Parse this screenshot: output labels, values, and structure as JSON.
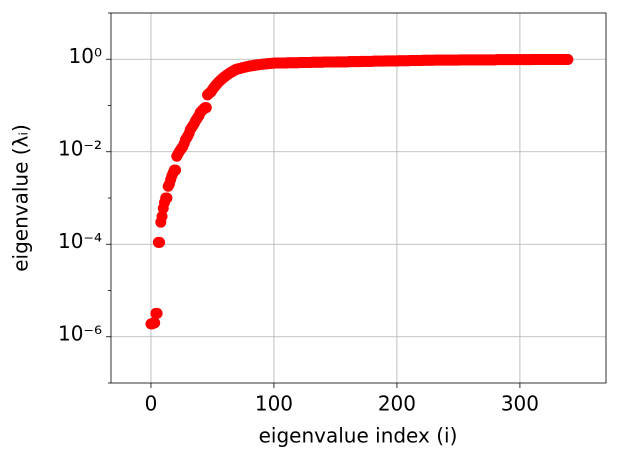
{
  "chart_data": {
    "type": "scatter",
    "xlabel": "eigenvalue index (i)",
    "ylabel": "eigenvalue (λᵢ)",
    "color": "#ff0000",
    "log_y": true,
    "grid": true,
    "xlim": [
      -32.5,
      370
    ],
    "xticks": [
      0,
      100,
      200,
      300
    ],
    "ylim": [
      1e-07,
      10
    ],
    "yticks": [
      {
        "value": 1e-06,
        "label": "10⁻⁶"
      },
      {
        "value": 0.0001,
        "label": "10⁻⁴"
      },
      {
        "value": 0.01,
        "label": "10⁻²"
      },
      {
        "value": 1,
        "label": "10⁰"
      }
    ],
    "yticks_minor": [
      1e-07,
      1e-05,
      0.001,
      0.1,
      10
    ],
    "x": [
      0,
      1,
      2,
      3,
      4,
      5,
      6,
      7,
      8,
      9,
      10,
      11,
      12,
      13,
      14,
      15,
      16,
      17,
      18,
      19,
      20,
      21,
      22,
      23,
      24,
      25,
      26,
      27,
      28,
      29,
      30,
      31,
      32,
      33,
      34,
      35,
      36,
      37,
      38,
      39,
      40,
      41,
      42,
      43,
      44,
      45,
      46,
      47,
      48,
      49,
      50,
      51,
      52,
      53,
      54,
      55,
      56,
      57,
      58,
      59,
      60,
      61,
      62,
      63,
      64,
      65,
      66,
      67,
      68,
      69,
      70,
      71,
      72,
      73,
      74,
      75,
      76,
      77,
      78,
      79,
      80,
      81,
      82,
      83,
      84,
      85,
      86,
      87,
      88,
      89,
      90,
      91,
      92,
      93,
      94,
      95,
      96,
      97,
      98,
      99,
      100,
      101,
      102,
      103,
      104,
      105,
      106,
      107,
      108,
      109,
      110,
      111,
      112,
      113,
      114,
      115,
      116,
      117,
      118,
      119,
      120,
      121,
      122,
      123,
      124,
      125,
      126,
      127,
      128,
      129,
      130,
      131,
      132,
      133,
      134,
      135,
      136,
      137,
      138,
      139,
      140,
      141,
      142,
      143,
      144,
      145,
      146,
      147,
      148,
      149,
      150,
      151,
      152,
      153,
      154,
      155,
      156,
      157,
      158,
      159,
      160,
      161,
      162,
      163,
      164,
      165,
      166,
      167,
      168,
      169,
      170,
      171,
      172,
      173,
      174,
      175,
      176,
      177,
      178,
      179,
      180,
      181,
      182,
      183,
      184,
      185,
      186,
      187,
      188,
      189,
      190,
      191,
      192,
      193,
      194,
      195,
      196,
      197,
      198,
      199,
      200,
      201,
      202,
      203,
      204,
      205,
      206,
      207,
      208,
      209,
      210,
      211,
      212,
      213,
      214,
      215,
      216,
      217,
      218,
      219,
      220,
      221,
      222,
      223,
      224,
      225,
      226,
      227,
      228,
      229,
      230,
      231,
      232,
      233,
      234,
      235,
      236,
      237,
      238,
      239,
      240,
      241,
      242,
      243,
      244,
      245,
      246,
      247,
      248,
      249,
      250,
      251,
      252,
      253,
      254,
      255,
      256,
      257,
      258,
      259,
      260,
      261,
      262,
      263,
      264,
      265,
      266,
      267,
      268,
      269,
      270,
      271,
      272,
      273,
      274,
      275,
      276,
      277,
      278,
      279,
      280,
      281,
      282,
      283,
      284,
      285,
      286,
      287,
      288,
      289,
      290,
      291,
      292,
      293,
      294,
      295,
      296,
      297,
      298,
      299,
      300,
      301,
      302,
      303,
      304,
      305,
      306,
      307,
      308,
      309,
      310,
      311,
      312,
      313,
      314,
      315,
      316,
      317,
      318,
      319,
      320,
      321,
      322,
      323,
      324,
      325,
      326,
      327,
      328,
      329,
      330,
      331,
      332,
      333,
      334,
      335,
      336,
      337,
      338,
      339
    ],
    "values": [
      1.9e-06,
      1.9e-06,
      2e-06,
      2e-06,
      3.2e-06,
      3.2e-06,
      0.00011,
      0.00011,
      0.0003,
      0.0004,
      0.0006,
      0.0008,
      0.001,
      0.001,
      0.0018,
      0.002,
      0.0025,
      0.003,
      0.0035,
      0.004,
      0.004,
      0.008,
      0.009,
      0.01,
      0.011,
      0.012,
      0.013,
      0.015,
      0.018,
      0.02,
      0.022,
      0.025,
      0.03,
      0.033,
      0.036,
      0.04,
      0.045,
      0.05,
      0.055,
      0.06,
      0.07,
      0.075,
      0.08,
      0.085,
      0.09,
      0.09,
      0.17,
      0.18,
      0.19,
      0.2,
      0.22,
      0.24,
      0.26,
      0.28,
      0.3,
      0.32,
      0.34,
      0.36,
      0.38,
      0.4,
      0.42,
      0.44,
      0.46,
      0.48,
      0.5,
      0.52,
      0.54,
      0.56,
      0.58,
      0.6,
      0.61,
      0.62,
      0.63,
      0.64,
      0.65,
      0.66,
      0.67,
      0.68,
      0.69,
      0.7,
      0.71,
      0.72,
      0.72,
      0.73,
      0.74,
      0.74,
      0.75,
      0.76,
      0.76,
      0.77,
      0.78,
      0.78,
      0.79,
      0.79,
      0.8,
      0.8,
      0.81,
      0.81,
      0.82,
      0.82,
      0.82,
      0.83,
      0.83,
      0.83,
      0.83,
      0.83,
      0.83,
      0.83,
      0.83,
      0.83,
      0.83,
      0.84,
      0.84,
      0.84,
      0.84,
      0.84,
      0.84,
      0.84,
      0.84,
      0.84,
      0.84,
      0.85,
      0.85,
      0.85,
      0.85,
      0.85,
      0.85,
      0.85,
      0.85,
      0.85,
      0.85,
      0.86,
      0.86,
      0.86,
      0.86,
      0.86,
      0.86,
      0.86,
      0.86,
      0.86,
      0.86,
      0.87,
      0.87,
      0.87,
      0.87,
      0.87,
      0.87,
      0.87,
      0.87,
      0.87,
      0.87,
      0.88,
      0.88,
      0.88,
      0.88,
      0.88,
      0.88,
      0.88,
      0.88,
      0.88,
      0.88,
      0.89,
      0.89,
      0.89,
      0.89,
      0.89,
      0.89,
      0.89,
      0.89,
      0.89,
      0.89,
      0.9,
      0.9,
      0.9,
      0.9,
      0.9,
      0.9,
      0.9,
      0.9,
      0.9,
      0.9,
      0.91,
      0.91,
      0.91,
      0.91,
      0.91,
      0.91,
      0.91,
      0.91,
      0.91,
      0.91,
      0.92,
      0.92,
      0.92,
      0.92,
      0.92,
      0.92,
      0.92,
      0.92,
      0.92,
      0.92,
      0.93,
      0.93,
      0.93,
      0.93,
      0.93,
      0.93,
      0.93,
      0.93,
      0.93,
      0.93,
      0.94,
      0.94,
      0.94,
      0.94,
      0.94,
      0.94,
      0.94,
      0.94,
      0.94,
      0.94,
      0.95,
      0.95,
      0.95,
      0.95,
      0.95,
      0.95,
      0.95,
      0.95,
      0.95,
      0.95,
      0.96,
      0.96,
      0.96,
      0.96,
      0.96,
      0.96,
      0.96,
      0.96,
      0.96,
      0.96,
      0.96,
      0.96,
      0.96,
      0.96,
      0.96,
      0.96,
      0.96,
      0.96,
      0.96,
      0.96,
      0.97,
      0.97,
      0.97,
      0.97,
      0.97,
      0.97,
      0.97,
      0.97,
      0.97,
      0.97,
      0.97,
      0.97,
      0.97,
      0.97,
      0.97,
      0.97,
      0.97,
      0.97,
      0.97,
      0.97,
      0.97,
      0.97,
      0.97,
      0.97,
      0.97,
      0.97,
      0.97,
      0.97,
      0.97,
      0.97,
      0.98,
      0.98,
      0.98,
      0.98,
      0.98,
      0.98,
      0.98,
      0.98,
      0.98,
      0.98,
      0.98,
      0.98,
      0.98,
      0.98,
      0.98,
      0.98,
      0.98,
      0.98,
      0.98,
      0.98,
      0.98,
      0.98,
      0.98,
      0.98,
      0.98,
      0.98,
      0.98,
      0.98,
      0.98,
      0.98,
      0.99,
      0.99,
      0.99,
      0.99,
      0.99,
      0.99,
      0.99,
      0.99,
      0.99,
      0.99,
      0.99,
      0.99,
      0.99,
      0.99,
      0.99,
      0.99,
      0.99,
      0.99,
      0.99,
      0.99,
      0.99,
      0.99,
      0.99,
      0.99,
      0.99,
      0.99,
      0.99,
      0.99,
      0.99
    ]
  }
}
